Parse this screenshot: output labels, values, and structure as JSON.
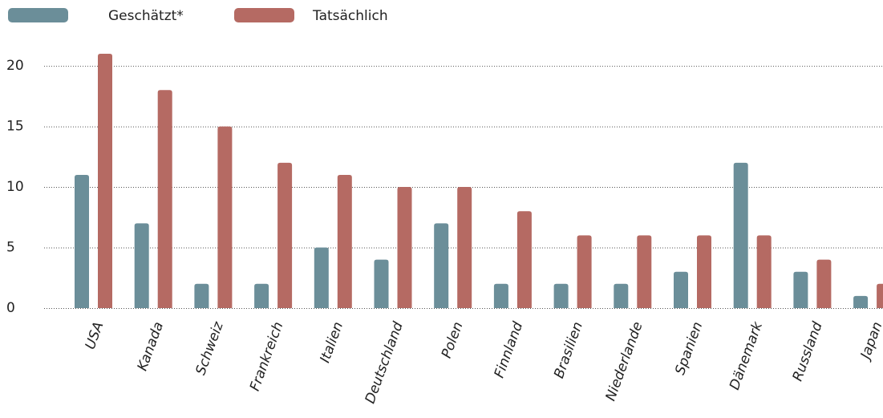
{
  "chart_data": {
    "type": "bar",
    "categories": [
      "USA",
      "Kanada",
      "Schweiz",
      "Frankreich",
      "Italien",
      "Deutschland",
      "Polen",
      "Finnland",
      "Brasilien",
      "Niederlande",
      "Spanien",
      "Dänemark",
      "Russland",
      "Japan"
    ],
    "series": [
      {
        "name": "Geschätzt*",
        "color": "#6b8e99",
        "values": [
          11,
          7,
          2,
          2,
          5,
          4,
          7,
          2,
          2,
          2,
          3,
          12,
          3,
          1
        ]
      },
      {
        "name": "Tatsächlich",
        "color": "#b56a63",
        "values": [
          21,
          18,
          15,
          12,
          11,
          10,
          10,
          8,
          6,
          6,
          6,
          6,
          4,
          2
        ]
      }
    ],
    "ylim": [
      0,
      21
    ],
    "yticks": [
      0,
      5,
      10,
      15,
      20
    ],
    "grid": true
  }
}
